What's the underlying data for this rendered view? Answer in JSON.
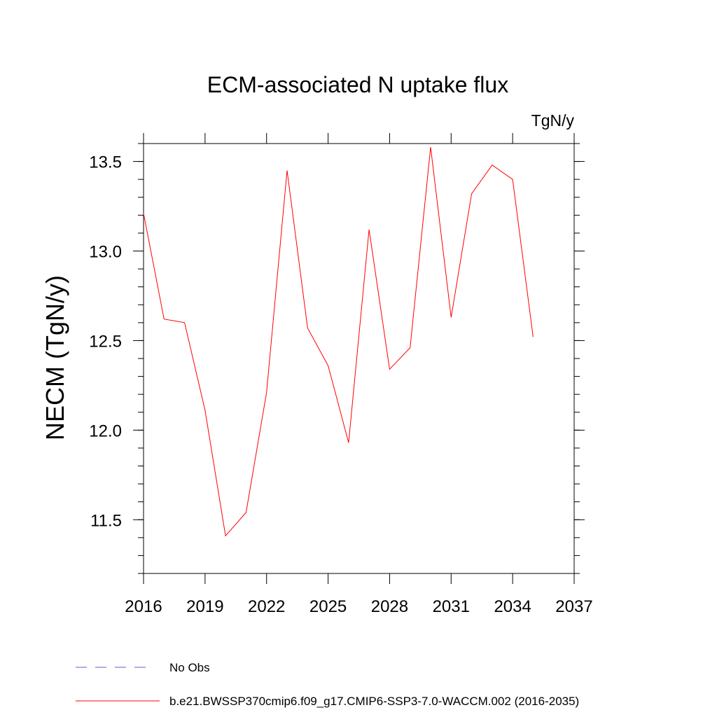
{
  "chart_data": {
    "type": "line",
    "title": "ECM-associated N uptake flux",
    "units": "TgN/y",
    "ylabel": "NECM  (TgN/y)",
    "xlabel": "",
    "xlim": [
      2016,
      2037
    ],
    "ylim": [
      11.2,
      13.6
    ],
    "xticks": [
      "2016",
      "2019",
      "2022",
      "2025",
      "2028",
      "2031",
      "2034",
      "2037"
    ],
    "yticks": [
      "11.5",
      "12.0",
      "12.5",
      "13.0",
      "13.5"
    ],
    "series": [
      {
        "name": "b.e21.BWSSP370cmip6.f09_g17.CMIP6-SSP3-7.0-WACCM.002 (2016-2035)",
        "color": "#ff0000",
        "x": [
          2016,
          2017,
          2018,
          2019,
          2020,
          2021,
          2022,
          2023,
          2024,
          2025,
          2026,
          2027,
          2028,
          2029,
          2030,
          2031,
          2032,
          2033,
          2034,
          2035
        ],
        "values": [
          13.21,
          12.62,
          12.6,
          12.11,
          11.41,
          11.54,
          12.21,
          13.45,
          12.57,
          12.36,
          11.93,
          13.12,
          12.34,
          12.46,
          13.58,
          12.63,
          13.32,
          13.48,
          13.4,
          12.52
        ]
      }
    ],
    "legend": [
      {
        "label": "No Obs",
        "color": "#6a5acd",
        "style": "dashed"
      },
      {
        "label": "b.e21.BWSSP370cmip6.f09_g17.CMIP6-SSP3-7.0-WACCM.002 (2016-2035)",
        "color": "#ff0000",
        "style": "solid"
      }
    ]
  }
}
